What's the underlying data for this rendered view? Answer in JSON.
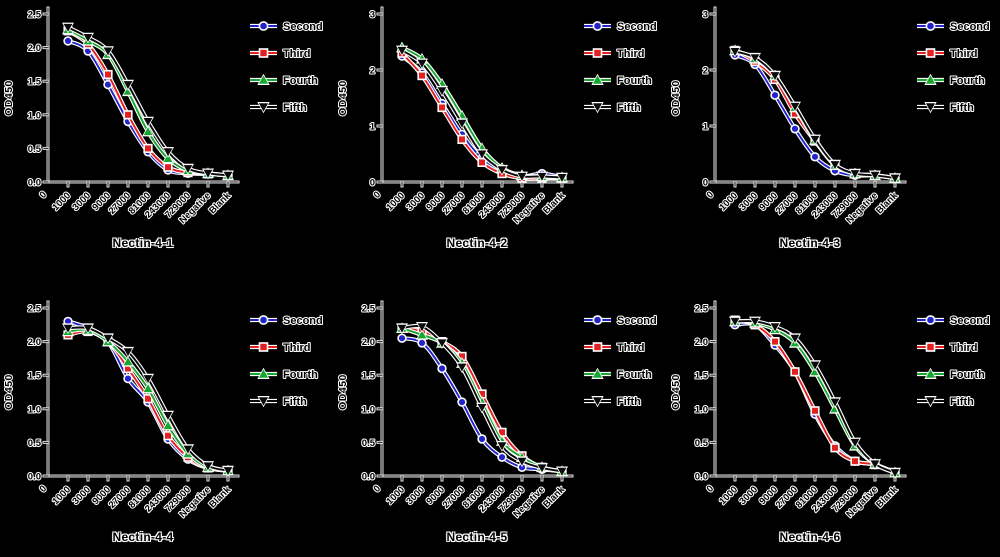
{
  "figure": {
    "background": "#000000",
    "text_color": "#000000",
    "text_halo_color": "#ffffff",
    "layout": "2 rows x 3 columns of line charts",
    "legend_labels": [
      "Second",
      "Third",
      "Fourth",
      "Fifth"
    ],
    "series_colors": {
      "Second": "#2323cc",
      "Third": "#e32020",
      "Fourth": "#17a62e",
      "Fifth": "#0a0a0a"
    },
    "series_markers": {
      "Second": "circle",
      "Third": "square",
      "Fourth": "triangle-up",
      "Fifth": "triangle-down"
    }
  },
  "chart_data": [
    {
      "type": "line",
      "title": "Nectin-4-1",
      "ylabel": "OD450",
      "ylim": [
        0,
        2.5
      ],
      "yticks": [
        "0.0",
        "0.5",
        "1.0",
        "1.5",
        "2.0",
        "2.5"
      ],
      "x_origin_label": "0",
      "legend_position": "right",
      "categories": [
        "1000",
        "3000",
        "9000",
        "27000",
        "81000",
        "243000",
        "729000",
        "Negative",
        "Blank"
      ],
      "series": [
        {
          "name": "Second",
          "color": "#2323cc",
          "marker": "circle",
          "values": [
            2.1,
            1.95,
            1.45,
            0.9,
            0.45,
            0.18,
            0.13,
            0.12,
            0.1
          ]
        },
        {
          "name": "Third",
          "color": "#e32020",
          "marker": "square",
          "values": [
            2.25,
            2.05,
            1.6,
            1.0,
            0.5,
            0.22,
            0.14,
            0.12,
            0.1
          ]
        },
        {
          "name": "Fourth",
          "color": "#17a62e",
          "marker": "triangle-up",
          "values": [
            2.27,
            2.1,
            1.9,
            1.35,
            0.75,
            0.35,
            0.17,
            0.13,
            0.1
          ]
        },
        {
          "name": "Fifth",
          "color": "#0a0a0a",
          "marker": "triangle-down",
          "values": [
            2.3,
            2.15,
            1.95,
            1.45,
            0.9,
            0.45,
            0.2,
            0.13,
            0.1
          ]
        }
      ]
    },
    {
      "type": "line",
      "title": "Nectin-4-2",
      "ylabel": "OD450",
      "ylim": [
        0,
        3
      ],
      "yticks": [
        "0",
        "1",
        "2",
        "3"
      ],
      "x_origin_label": "0",
      "legend_position": "right",
      "categories": [
        "1000",
        "3000",
        "9000",
        "27000",
        "81000",
        "243000",
        "729000",
        "Negative",
        "Blank"
      ],
      "series": [
        {
          "name": "Second",
          "color": "#2323cc",
          "marker": "circle",
          "values": [
            2.25,
            1.95,
            1.4,
            0.85,
            0.42,
            0.2,
            0.1,
            0.15,
            0.08
          ]
        },
        {
          "name": "Third",
          "color": "#e32020",
          "marker": "square",
          "values": [
            2.3,
            1.9,
            1.33,
            0.76,
            0.35,
            0.15,
            0.07,
            0.07,
            0.07
          ]
        },
        {
          "name": "Fourth",
          "color": "#17a62e",
          "marker": "triangle-up",
          "values": [
            2.4,
            2.2,
            1.75,
            1.18,
            0.6,
            0.25,
            0.12,
            0.1,
            0.08
          ]
        },
        {
          "name": "Fifth",
          "color": "#0a0a0a",
          "marker": "triangle-down",
          "values": [
            2.35,
            2.12,
            1.63,
            1.05,
            0.5,
            0.22,
            0.1,
            0.1,
            0.08
          ]
        }
      ]
    },
    {
      "type": "line",
      "title": "Nectin-4-3",
      "ylabel": "OD450",
      "ylim": [
        0,
        3
      ],
      "yticks": [
        "0",
        "1",
        "2",
        "3"
      ],
      "x_origin_label": "0",
      "legend_position": "right",
      "categories": [
        "1000",
        "3000",
        "9000",
        "27000",
        "81000",
        "243000",
        "729000",
        "Negative",
        "Blank"
      ],
      "series": [
        {
          "name": "Second",
          "color": "#2323cc",
          "marker": "circle",
          "values": [
            2.27,
            2.1,
            1.55,
            0.95,
            0.45,
            0.2,
            0.12,
            0.12,
            0.07
          ]
        },
        {
          "name": "Third",
          "color": "#e32020",
          "marker": "square",
          "values": [
            2.35,
            2.15,
            1.83,
            1.22,
            0.73,
            0.3,
            0.15,
            0.12,
            0.07
          ]
        },
        {
          "name": "Fourth",
          "color": "#17a62e",
          "marker": "triangle-up",
          "values": [
            2.35,
            2.2,
            1.9,
            1.33,
            0.75,
            0.3,
            0.15,
            0.12,
            0.07
          ]
        },
        {
          "name": "Fifth",
          "color": "#0a0a0a",
          "marker": "triangle-down",
          "values": [
            2.33,
            2.22,
            1.9,
            1.35,
            0.76,
            0.31,
            0.15,
            0.12,
            0.07
          ]
        }
      ]
    },
    {
      "type": "line",
      "title": "Nectin-4-4",
      "ylabel": "OD450",
      "ylim": [
        0,
        2.5
      ],
      "yticks": [
        "0.0",
        "0.5",
        "1.0",
        "1.5",
        "2.0",
        "2.5"
      ],
      "x_origin_label": "0",
      "legend_position": "right",
      "categories": [
        "1000",
        "3000",
        "9000",
        "27000",
        "81000",
        "243000",
        "729000",
        "Negative",
        "Blank"
      ],
      "series": [
        {
          "name": "Second",
          "color": "#2323cc",
          "marker": "circle",
          "values": [
            2.3,
            2.2,
            2.0,
            1.45,
            1.1,
            0.55,
            0.25,
            0.12,
            0.08
          ]
        },
        {
          "name": "Third",
          "color": "#e32020",
          "marker": "square",
          "values": [
            2.1,
            2.15,
            2.0,
            1.6,
            1.15,
            0.6,
            0.28,
            0.12,
            0.08
          ]
        },
        {
          "name": "Fourth",
          "color": "#17a62e",
          "marker": "triangle-up",
          "values": [
            2.15,
            2.17,
            2.0,
            1.7,
            1.3,
            0.75,
            0.33,
            0.13,
            0.08
          ]
        },
        {
          "name": "Fifth",
          "color": "#0a0a0a",
          "marker": "triangle-down",
          "values": [
            2.2,
            2.2,
            2.05,
            1.85,
            1.45,
            0.9,
            0.4,
            0.15,
            0.08
          ]
        }
      ]
    },
    {
      "type": "line",
      "title": "Nectin-4-5",
      "ylabel": "OD450",
      "ylim": [
        0,
        2.5
      ],
      "yticks": [
        "0.0",
        "0.5",
        "1.0",
        "1.5",
        "2.0",
        "2.5"
      ],
      "x_origin_label": "0",
      "legend_position": "right",
      "categories": [
        "1000",
        "3000",
        "9000",
        "27000",
        "81000",
        "243000",
        "729000",
        "Negative",
        "Blank"
      ],
      "series": [
        {
          "name": "Second",
          "color": "#2323cc",
          "marker": "circle",
          "values": [
            2.05,
            1.98,
            1.6,
            1.1,
            0.55,
            0.28,
            0.13,
            0.1,
            0.07
          ]
        },
        {
          "name": "Third",
          "color": "#e32020",
          "marker": "square",
          "values": [
            2.2,
            2.15,
            2.0,
            1.78,
            1.22,
            0.65,
            0.3,
            0.13,
            0.07
          ]
        },
        {
          "name": "Fourth",
          "color": "#17a62e",
          "marker": "triangle-up",
          "values": [
            2.2,
            2.1,
            1.98,
            1.68,
            1.1,
            0.52,
            0.28,
            0.13,
            0.07
          ]
        },
        {
          "name": "Fifth",
          "color": "#0a0a0a",
          "marker": "triangle-down",
          "values": [
            2.2,
            2.22,
            1.98,
            1.62,
            1.02,
            0.45,
            0.22,
            0.12,
            0.07
          ]
        }
      ]
    },
    {
      "type": "line",
      "title": "Nectin-4-6",
      "ylabel": "OD450",
      "ylim": [
        0,
        2.5
      ],
      "yticks": [
        "0.0",
        "0.5",
        "1.0",
        "1.5",
        "2.0",
        "2.5"
      ],
      "x_origin_label": "0",
      "legend_position": "right",
      "categories": [
        "1000",
        "3000",
        "9000",
        "27000",
        "81000",
        "243000",
        "729000",
        "Negative",
        "Blank"
      ],
      "series": [
        {
          "name": "Second",
          "color": "#2323cc",
          "marker": "circle",
          "values": [
            2.25,
            2.25,
            1.95,
            1.55,
            0.92,
            0.45,
            0.22,
            0.17,
            0.05
          ]
        },
        {
          "name": "Third",
          "color": "#e32020",
          "marker": "square",
          "values": [
            2.32,
            2.25,
            2.0,
            1.55,
            0.97,
            0.42,
            0.22,
            0.17,
            0.05
          ]
        },
        {
          "name": "Fourth",
          "color": "#17a62e",
          "marker": "triangle-up",
          "values": [
            2.3,
            2.28,
            2.18,
            1.98,
            1.55,
            1.0,
            0.45,
            0.18,
            0.05
          ]
        },
        {
          "name": "Fifth",
          "color": "#0a0a0a",
          "marker": "triangle-down",
          "values": [
            2.3,
            2.3,
            2.22,
            2.05,
            1.65,
            1.1,
            0.5,
            0.18,
            0.05
          ]
        }
      ]
    }
  ]
}
